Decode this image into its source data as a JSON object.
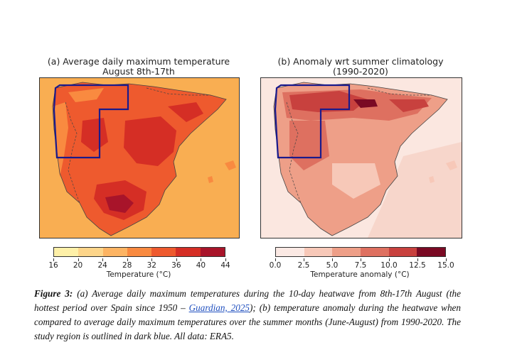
{
  "panel_a": {
    "title_line1": "(a) Average daily maximum temperature",
    "title_line2": "August 8th-17th",
    "colorbar_ticks": [
      "16",
      "20",
      "24",
      "28",
      "32",
      "36",
      "40",
      "44"
    ],
    "colorbar_label": "Temperature (°C)",
    "colorbar_colors": [
      "#fef0a8",
      "#fdd58a",
      "#fdb463",
      "#f98a40",
      "#ee5a2e",
      "#d52e25",
      "#a8142a"
    ]
  },
  "panel_b": {
    "title_line1": "(b) Anomaly wrt summer climatology",
    "title_line2": "(1990-2020)",
    "colorbar_ticks": [
      "0.0",
      "2.5",
      "5.0",
      "7.5",
      "10.0",
      "12.5",
      "15.0"
    ],
    "colorbar_label": "Temperature anomaly (°C)",
    "colorbar_colors": [
      "#fbe9e4",
      "#f7c8b8",
      "#ee9f88",
      "#de7060",
      "#c8413e",
      "#7a0a24"
    ]
  },
  "colors": {
    "region_outline": "#1a1a8c",
    "sea_a": "#f9ae52",
    "sea_b": "#fbe7e0",
    "border": "#444444"
  },
  "caption": {
    "label": "Figure 3:",
    "text_before_link": " (a) Average daily maximum temperatures during the 10-day heatwave from 8th-17th August (the hottest period over Spain since 1950 – ",
    "link_text": "Guardian, 2025",
    "text_after_link": "); (b) temperature anomaly during the heatwave when compared to average daily maximum temperatures over the summer months (June-August) from 1990-2020. The study region is outlined in dark blue. All data: ERA5."
  }
}
